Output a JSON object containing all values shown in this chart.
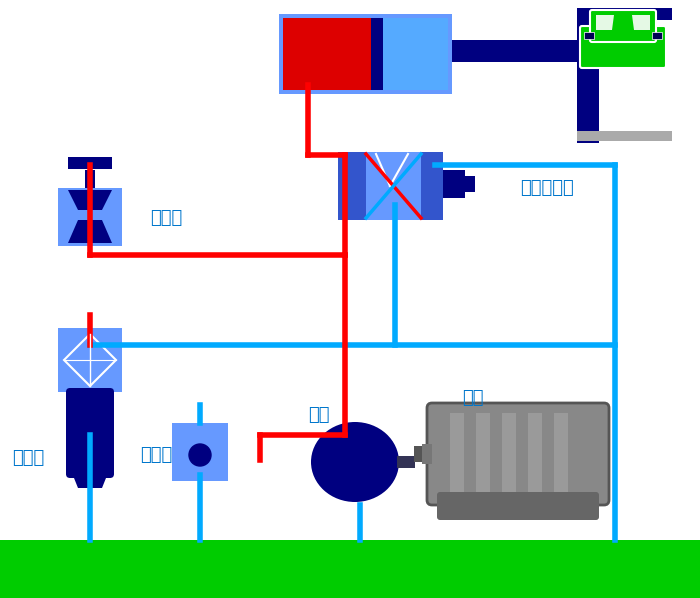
{
  "bg_color": "#ffffff",
  "oil_tank_color": "#00cc00",
  "pipe_red": "#ff0000",
  "pipe_blue": "#00aaff",
  "dark_blue": "#000080",
  "light_blue": "#6699ff",
  "car_green": "#00cc00",
  "labels": {
    "jieliufa": "节流阀",
    "guolvqi": "过滤器",
    "yiliufa": "溢流阀",
    "youbeng": "油泵",
    "dianji": "电机",
    "dianci": "电磁换向阀"
  },
  "figsize": [
    7.0,
    5.98
  ],
  "dpi": 100
}
